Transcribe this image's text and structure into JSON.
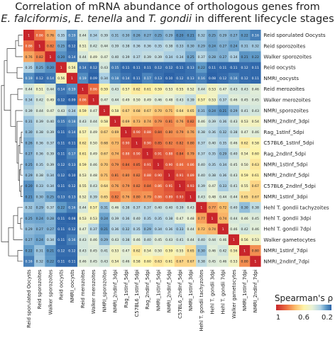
{
  "chart_data": {
    "type": "heatmap",
    "title_line1": "Correlation of mRNA abundance of orthologous genes from",
    "title_line2_parts": [
      {
        "text": "E. falciformis",
        "italic": true
      },
      {
        "text": ", ",
        "italic": false
      },
      {
        "text": "E. tenella",
        "italic": true
      },
      {
        "text": " and ",
        "italic": false
      },
      {
        "text": "T. gondii",
        "italic": true
      },
      {
        "text": " in different lifecycle stages",
        "italic": false
      }
    ],
    "labels": [
      "Reid sporulated Oocysts",
      "Reid sporozoites",
      "Walker sporozoites",
      "Reid oocysts",
      "NMRI_oocysts",
      "Reid merozoites",
      "Walker merozoites",
      "NMRI_sporozoites",
      "NMRI_2ndInf_3dpi",
      "Rag_1stInf_5dpi",
      "C57BL6_1stInf_5dpi",
      "Rag_2ndInf_5dpi",
      "NMRI_1stInf_5dpi",
      "NMRI_2ndInf_5dpi",
      "C57BL6_2ndInf_5dpi",
      "NMRI_1stInf_3dpi",
      "Hehl T. gondii tachyzoites",
      "Hehl T. gondii 3dpi",
      "Hehl T. gondii 7dpi",
      "Walker gametocytes",
      "NMRI_1stInf_7dpi",
      "NMRI_2ndInf_7dpi"
    ],
    "values": [
      [
        1,
        0.86,
        0.76,
        0.35,
        0.19,
        0.44,
        0.34,
        0.39,
        0.31,
        0.3,
        0.26,
        0.27,
        0.25,
        0.29,
        0.2,
        0.21,
        0.32,
        0.25,
        0.29,
        0.27,
        0.22,
        0.16
      ],
      [
        0.86,
        1,
        0.82,
        0.25,
        0.12,
        0.51,
        0.42,
        0.44,
        0.39,
        0.38,
        0.36,
        0.36,
        0.35,
        0.38,
        0.33,
        0.3,
        0.29,
        0.24,
        0.27,
        0.24,
        0.31,
        0.32
      ],
      [
        0.76,
        0.82,
        1,
        0.2,
        0.14,
        0.44,
        0.49,
        0.47,
        0.4,
        0.39,
        0.37,
        0.39,
        0.39,
        0.34,
        0.34,
        0.25,
        0.37,
        0.28,
        0.27,
        0.34,
        0.21,
        0.22
      ],
      [
        0.35,
        0.25,
        0.2,
        1,
        0.56,
        0.14,
        0.12,
        0.43,
        0.15,
        0.11,
        0.11,
        0.11,
        0.12,
        0.12,
        0.11,
        0.13,
        0.22,
        0.11,
        0.11,
        0.11,
        0.12,
        0.11
      ],
      [
        0.19,
        0.12,
        0.14,
        0.56,
        1,
        0.19,
        0.09,
        0.34,
        0.18,
        0.14,
        0.11,
        0.17,
        0.13,
        0.1,
        0.12,
        0.13,
        0.16,
        0.08,
        0.12,
        0.16,
        0.12,
        0.11
      ],
      [
        0.44,
        0.51,
        0.44,
        0.14,
        0.19,
        1,
        0.86,
        0.59,
        0.43,
        0.57,
        0.62,
        0.61,
        0.59,
        0.53,
        0.55,
        0.52,
        0.44,
        0.53,
        0.47,
        0.43,
        0.43,
        0.46
      ],
      [
        0.34,
        0.42,
        0.49,
        0.12,
        0.09,
        0.86,
        1,
        0.47,
        0.44,
        0.49,
        0.5,
        0.49,
        0.46,
        0.48,
        0.43,
        0.39,
        0.57,
        0.53,
        0.37,
        0.46,
        0.45,
        0.45
      ],
      [
        0.39,
        0.44,
        0.47,
        0.43,
        0.34,
        0.59,
        0.47,
        1,
        0.58,
        0.67,
        0.68,
        0.67,
        0.7,
        0.71,
        0.64,
        0.65,
        0.31,
        0.24,
        0.21,
        0.29,
        0.41,
        0.43
      ],
      [
        0.31,
        0.39,
        0.4,
        0.15,
        0.18,
        0.43,
        0.44,
        0.58,
        1,
        0.69,
        0.73,
        0.74,
        0.79,
        0.81,
        0.76,
        0.82,
        0.46,
        0.39,
        0.36,
        0.43,
        0.53,
        0.54
      ],
      [
        0.3,
        0.38,
        0.39,
        0.11,
        0.14,
        0.57,
        0.49,
        0.67,
        0.69,
        1,
        0.9,
        0.88,
        0.84,
        0.8,
        0.79,
        0.76,
        0.38,
        0.36,
        0.32,
        0.38,
        0.47,
        0.46
      ],
      [
        0.26,
        0.36,
        0.37,
        0.11,
        0.11,
        0.62,
        0.5,
        0.68,
        0.73,
        0.9,
        1,
        0.9,
        0.85,
        0.82,
        0.82,
        0.8,
        0.37,
        0.4,
        0.35,
        0.46,
        0.62,
        0.58
      ],
      [
        0.27,
        0.36,
        0.39,
        0.11,
        0.17,
        0.61,
        0.49,
        0.67,
        0.74,
        0.88,
        0.9,
        1,
        0.91,
        0.88,
        0.84,
        0.79,
        0.37,
        0.35,
        0.29,
        0.4,
        0.54,
        0.6
      ],
      [
        0.25,
        0.35,
        0.39,
        0.12,
        0.13,
        0.59,
        0.46,
        0.7,
        0.79,
        0.84,
        0.85,
        0.91,
        1,
        0.9,
        0.86,
        0.86,
        0.4,
        0.35,
        0.34,
        0.45,
        0.5,
        0.63
      ],
      [
        0.29,
        0.38,
        0.34,
        0.12,
        0.1,
        0.53,
        0.48,
        0.71,
        0.81,
        0.8,
        0.82,
        0.88,
        0.9,
        1,
        0.91,
        0.89,
        0.4,
        0.38,
        0.36,
        0.43,
        0.59,
        0.61
      ],
      [
        0.2,
        0.33,
        0.34,
        0.11,
        0.12,
        0.55,
        0.43,
        0.64,
        0.76,
        0.79,
        0.82,
        0.84,
        0.86,
        0.91,
        1,
        0.93,
        0.39,
        0.47,
        0.33,
        0.41,
        0.55,
        0.67
      ],
      [
        0.21,
        0.3,
        0.25,
        0.13,
        0.13,
        0.52,
        0.39,
        0.65,
        0.82,
        0.76,
        0.8,
        0.79,
        0.86,
        0.89,
        0.93,
        1,
        0.43,
        0.48,
        0.44,
        0.44,
        0.65,
        0.67
      ],
      [
        0.32,
        0.29,
        0.37,
        0.22,
        0.16,
        0.44,
        0.57,
        0.31,
        0.46,
        0.38,
        0.37,
        0.37,
        0.4,
        0.4,
        0.39,
        0.43,
        1,
        0.77,
        0.72,
        0.4,
        0.3,
        0.38
      ],
      [
        0.25,
        0.24,
        0.28,
        0.11,
        0.08,
        0.53,
        0.53,
        0.24,
        0.39,
        0.36,
        0.4,
        0.35,
        0.35,
        0.38,
        0.47,
        0.48,
        0.77,
        1,
        0.74,
        0.44,
        0.46,
        0.45
      ],
      [
        0.29,
        0.27,
        0.27,
        0.11,
        0.12,
        0.47,
        0.37,
        0.21,
        0.36,
        0.32,
        0.35,
        0.29,
        0.34,
        0.36,
        0.33,
        0.44,
        0.72,
        0.74,
        1,
        0.46,
        0.42,
        0.46
      ],
      [
        0.27,
        0.24,
        0.34,
        0.11,
        0.16,
        0.43,
        0.46,
        0.29,
        0.43,
        0.38,
        0.46,
        0.4,
        0.45,
        0.43,
        0.41,
        0.44,
        0.4,
        0.44,
        0.46,
        1,
        0.56,
        0.53
      ],
      [
        0.22,
        0.31,
        0.21,
        0.12,
        0.12,
        0.43,
        0.45,
        0.41,
        0.53,
        0.47,
        0.62,
        0.54,
        0.5,
        0.59,
        0.55,
        0.65,
        0.3,
        0.46,
        0.42,
        0.56,
        1,
        0.8
      ],
      [
        0.16,
        0.32,
        0.22,
        0.11,
        0.11,
        0.46,
        0.45,
        0.43,
        0.54,
        0.46,
        0.58,
        0.6,
        0.63,
        0.61,
        0.67,
        0.67,
        0.38,
        0.45,
        0.46,
        0.53,
        0.8,
        1
      ]
    ],
    "legend": {
      "title": "Spearman's ρ",
      "ticks": [
        "1",
        "0.6",
        "0.2"
      ],
      "color_high": "#b2182b",
      "color_mid": "#f7f7b0",
      "color_low": "#2166ac"
    },
    "dendrogram": "row-clustering tree on left"
  }
}
